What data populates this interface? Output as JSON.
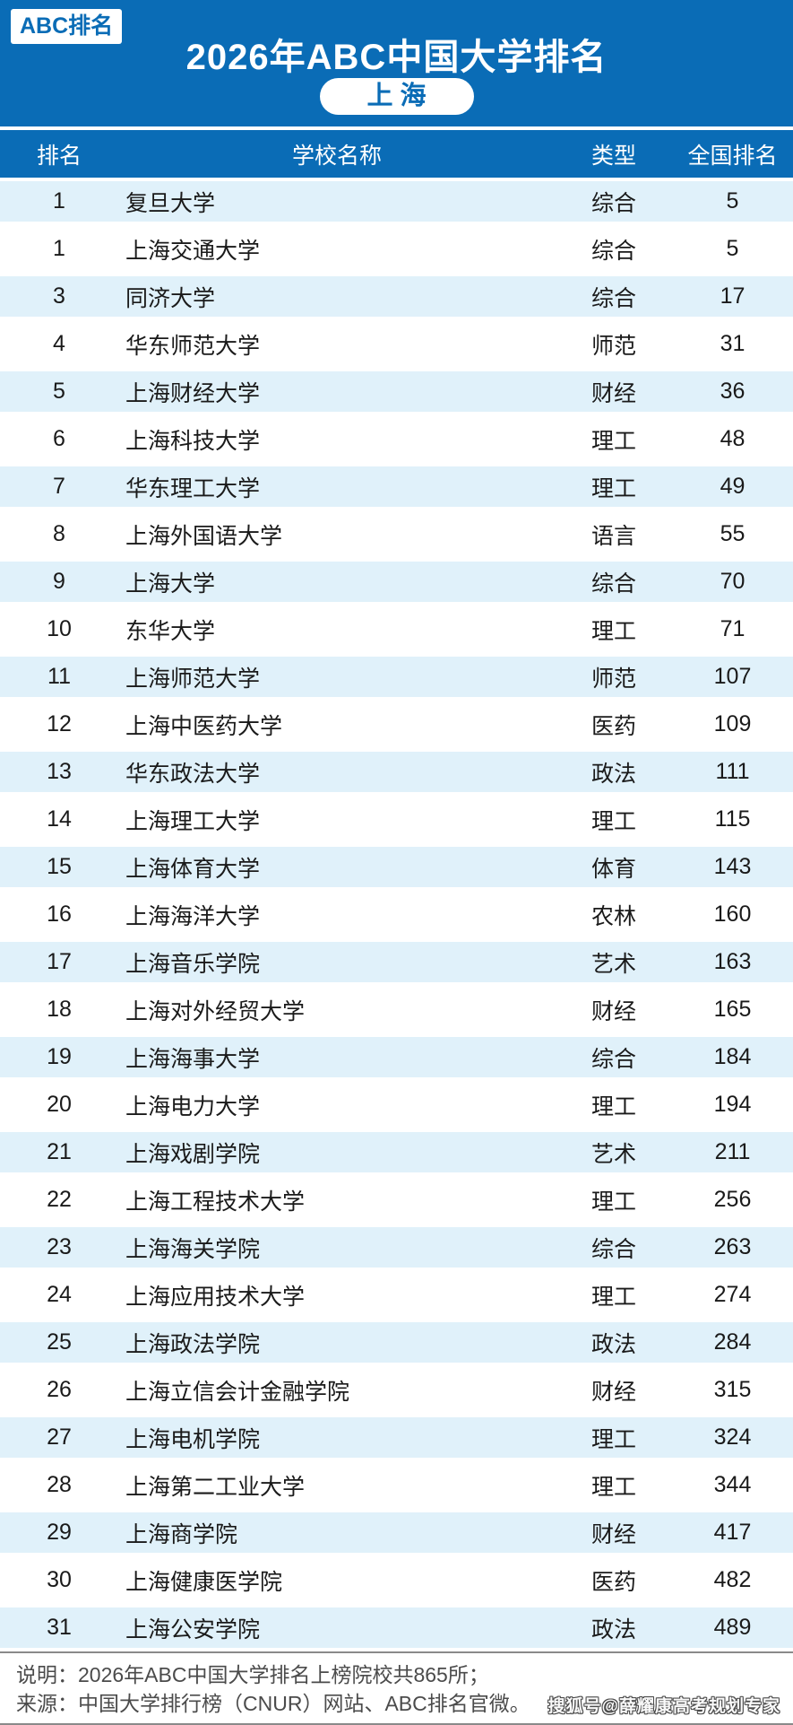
{
  "header": {
    "badge": "ABC排名",
    "title": "2026年ABC中国大学排名",
    "region": "上海"
  },
  "chart_data": {
    "type": "table",
    "title": "2026年ABC中国大学排名",
    "subtitle": "上海",
    "columns": [
      "排名",
      "学校名称",
      "类型",
      "全国排名"
    ],
    "rows": [
      [
        "1",
        "复旦大学",
        "综合",
        "5"
      ],
      [
        "1",
        "上海交通大学",
        "综合",
        "5"
      ],
      [
        "3",
        "同济大学",
        "综合",
        "17"
      ],
      [
        "4",
        "华东师范大学",
        "师范",
        "31"
      ],
      [
        "5",
        "上海财经大学",
        "财经",
        "36"
      ],
      [
        "6",
        "上海科技大学",
        "理工",
        "48"
      ],
      [
        "7",
        "华东理工大学",
        "理工",
        "49"
      ],
      [
        "8",
        "上海外国语大学",
        "语言",
        "55"
      ],
      [
        "9",
        "上海大学",
        "综合",
        "70"
      ],
      [
        "10",
        "东华大学",
        "理工",
        "71"
      ],
      [
        "11",
        "上海师范大学",
        "师范",
        "107"
      ],
      [
        "12",
        "上海中医药大学",
        "医药",
        "109"
      ],
      [
        "13",
        "华东政法大学",
        "政法",
        "111"
      ],
      [
        "14",
        "上海理工大学",
        "理工",
        "115"
      ],
      [
        "15",
        "上海体育大学",
        "体育",
        "143"
      ],
      [
        "16",
        "上海海洋大学",
        "农林",
        "160"
      ],
      [
        "17",
        "上海音乐学院",
        "艺术",
        "163"
      ],
      [
        "18",
        "上海对外经贸大学",
        "财经",
        "165"
      ],
      [
        "19",
        "上海海事大学",
        "综合",
        "184"
      ],
      [
        "20",
        "上海电力大学",
        "理工",
        "194"
      ],
      [
        "21",
        "上海戏剧学院",
        "艺术",
        "211"
      ],
      [
        "22",
        "上海工程技术大学",
        "理工",
        "256"
      ],
      [
        "23",
        "上海海关学院",
        "综合",
        "263"
      ],
      [
        "24",
        "上海应用技术大学",
        "理工",
        "274"
      ],
      [
        "25",
        "上海政法学院",
        "政法",
        "284"
      ],
      [
        "26",
        "上海立信会计金融学院",
        "财经",
        "315"
      ],
      [
        "27",
        "上海电机学院",
        "理工",
        "324"
      ],
      [
        "28",
        "上海第二工业大学",
        "理工",
        "344"
      ],
      [
        "29",
        "上海商学院",
        "财经",
        "417"
      ],
      [
        "30",
        "上海健康医学院",
        "医药",
        "482"
      ],
      [
        "31",
        "上海公安学院",
        "政法",
        "489"
      ]
    ]
  },
  "footer": {
    "note": "说明：2026年ABC中国大学排名上榜院校共865所；",
    "source": "来源：中国大学排行榜（CNUR）网站、ABC排名官微。",
    "watermark": "搜狐号@薛耀康高考规划专家"
  },
  "colors": {
    "accent_blue": "#0a6cb6",
    "stripe_light_blue": "#e0f1fa",
    "row_text": "#1a1a1a",
    "footer_text": "#4b4b4b",
    "footer_border": "#8a8a8a"
  }
}
